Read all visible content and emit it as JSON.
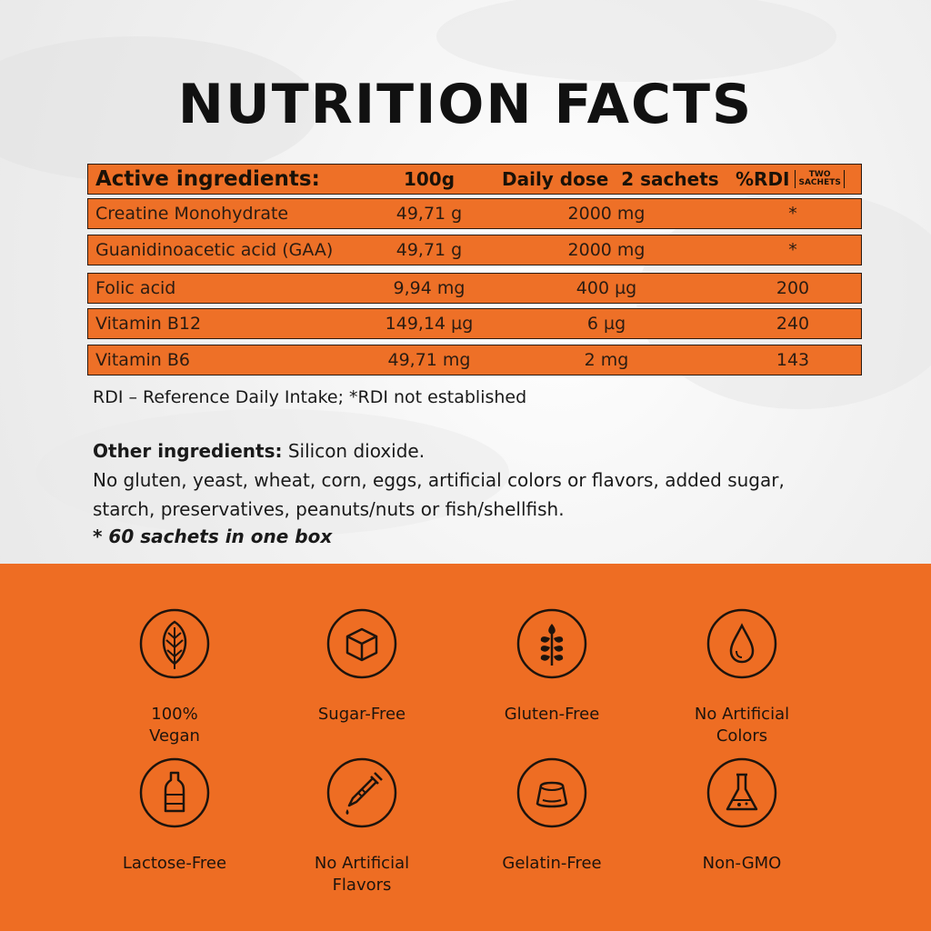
{
  "title": "NUTRITION FACTS",
  "table": {
    "headers": {
      "ingredient": "Active ingredients:",
      "per100g": "100g",
      "daily": "Daily dose  2 sachets",
      "rdi": "%RDI",
      "rdi_note_line1": "TWO",
      "rdi_note_line2": "SACHETS"
    },
    "rows": [
      {
        "name": "Creatine Monohydrate",
        "per100g": "49,71 g",
        "daily": "2000 mg",
        "rdi": "*"
      },
      {
        "name": "Guanidinoacetic acid (GAA)",
        "per100g": "49,71 g",
        "daily": "2000 mg",
        "rdi": "*"
      },
      {
        "name": "Folic acid",
        "per100g": "9,94 mg",
        "daily": "400 µg",
        "rdi": "200"
      },
      {
        "name": "Vitamin B12",
        "per100g": "149,14 µg",
        "daily": "6 µg",
        "rdi": "240"
      },
      {
        "name": "Vitamin B6",
        "per100g": "49,71 mg",
        "daily": "2 mg",
        "rdi": "143"
      }
    ]
  },
  "note": "RDI – Reference Daily Intake; *RDI not established",
  "other_label": "Other ingredients:",
  "other_value": " Silicon dioxide.",
  "other_line2": "No gluten, yeast, wheat, corn, eggs, artificial colors or flavors, added sugar,",
  "other_line3": "starch, preservatives, peanuts/nuts or fish/shellfish.",
  "box_note": "* 60 sachets in one box",
  "features": [
    {
      "label": "100%\nVegan",
      "icon": "leaf-icon"
    },
    {
      "label": "Sugar-Free",
      "icon": "sugar-cube-icon"
    },
    {
      "label": "Gluten-Free",
      "icon": "wheat-icon"
    },
    {
      "label": "No Artificial\nColors",
      "icon": "drop-icon"
    },
    {
      "label": "Lactose-Free",
      "icon": "milk-bottle-icon"
    },
    {
      "label": "No Artificial\nFlavors",
      "icon": "pipette-icon"
    },
    {
      "label": "Gelatin-Free",
      "icon": "gelatin-icon"
    },
    {
      "label": "Non-GMO",
      "icon": "flask-icon"
    }
  ],
  "colors": {
    "accent": "#ee7027",
    "dark": "#1a1208",
    "background": "#f1f1f1"
  }
}
